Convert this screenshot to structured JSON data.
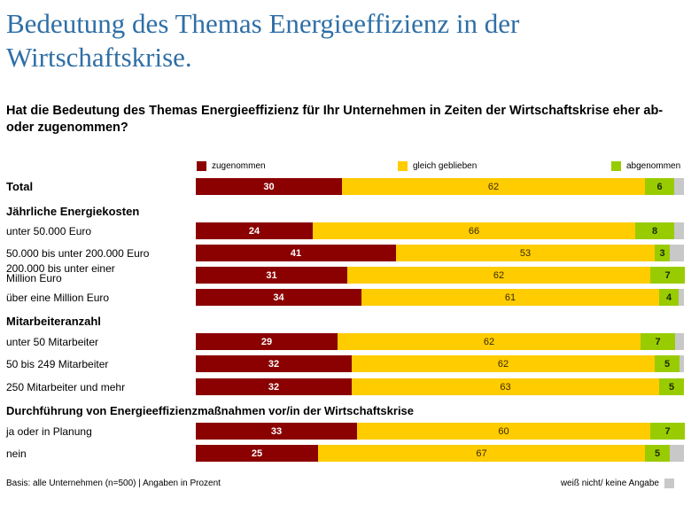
{
  "title": "Bedeutung des Themas Energieeffizienz in der Wirtschaftskrise.",
  "question": "Hat die Bedeutung des Themas Energieeffizienz für Ihr Unternehmen in Zeiten der Wirtschaftskrise eher ab- oder zugenommen?",
  "footer": {
    "basis": "Basis: alle Unternehmen (n=500) | Angaben in Prozent",
    "unknown_label": "weiß nicht/ keine Angabe"
  },
  "colors": {
    "up": "#8b0000",
    "same": "#ffcc00",
    "down": "#99cc00",
    "unknown": "#c8c8c8"
  },
  "chart_data": {
    "type": "bar",
    "orientation": "horizontal-stacked",
    "title": "Bedeutung des Themas Energieeffizienz in der Wirtschaftskrise.",
    "unit": "Prozent",
    "legend": [
      "zugenommen",
      "gleich geblieben",
      "abgenommen"
    ],
    "groups": [
      {
        "header": "",
        "rows": [
          {
            "label": "Total",
            "bold": true,
            "values": [
              30,
              62,
              6
            ]
          }
        ]
      },
      {
        "header": "Jährliche Energiekosten",
        "rows": [
          {
            "label": "unter 50.000 Euro",
            "values": [
              24,
              66,
              8
            ]
          },
          {
            "label": "50.000 bis unter 200.000 Euro",
            "values": [
              41,
              53,
              3
            ]
          },
          {
            "label": "200.000 bis unter einer Million Euro",
            "values": [
              31,
              62,
              7
            ]
          },
          {
            "label": "über eine Million Euro",
            "values": [
              34,
              61,
              4
            ]
          }
        ]
      },
      {
        "header": "Mitarbeiteranzahl",
        "rows": [
          {
            "label": "unter 50 Mitarbeiter",
            "values": [
              29,
              62,
              7
            ]
          },
          {
            "label": "50 bis 249 Mitarbeiter",
            "values": [
              32,
              62,
              5
            ]
          },
          {
            "label": "250 Mitarbeiter und mehr",
            "values": [
              32,
              63,
              5
            ]
          }
        ]
      },
      {
        "header": "Durchführung von Energieeffizienzmaßnahmen vor/in der Wirtschaftskrise",
        "rows": [
          {
            "label": "ja oder in Planung",
            "values": [
              33,
              60,
              7
            ]
          },
          {
            "label": "nein",
            "values": [
              25,
              67,
              5
            ]
          }
        ]
      }
    ]
  }
}
